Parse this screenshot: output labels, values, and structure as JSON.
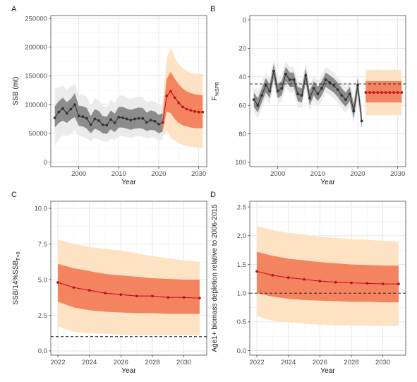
{
  "chart_data": [
    {
      "panel": "A",
      "type": "line",
      "xlabel": "Year",
      "ylabel": "SSB (mt)",
      "xlim": [
        1993,
        2032
      ],
      "ylim": [
        -8000,
        255000
      ],
      "y_reversed": false,
      "xticks": [
        2000,
        2010,
        2020,
        2030
      ],
      "yticks": [
        0,
        50000,
        100000,
        150000,
        200000,
        250000
      ],
      "ytick_labels": [
        "0",
        "50000",
        "100000",
        "150000",
        "200000",
        "250000"
      ],
      "xtick_labels": [
        "2000",
        "2010",
        "2020",
        "2030"
      ],
      "grid": true,
      "hline": null,
      "historical": {
        "color": "#333333",
        "x": [
          1994,
          1995,
          1996,
          1997,
          1998,
          1999,
          2000,
          2001,
          2002,
          2003,
          2004,
          2005,
          2006,
          2007,
          2008,
          2009,
          2010,
          2011,
          2012,
          2013,
          2014,
          2015,
          2016,
          2017,
          2018,
          2019,
          2020,
          2021
        ],
        "y": [
          77000,
          87000,
          93000,
          85000,
          92000,
          100000,
          80000,
          79000,
          76000,
          65000,
          75000,
          72000,
          65000,
          64000,
          74000,
          68000,
          78000,
          77000,
          75000,
          73000,
          75000,
          76000,
          76000,
          69000,
          73000,
          71000,
          66000,
          69000
        ],
        "band_inner": {
          "color": "#8c8c8c",
          "lower": [
            60000,
            68000,
            72000,
            68000,
            74000,
            78000,
            63000,
            62000,
            58000,
            50000,
            58000,
            55000,
            50000,
            49000,
            57000,
            52000,
            60000,
            60000,
            58000,
            56000,
            58000,
            59000,
            58000,
            54000,
            56000,
            55000,
            50000,
            53000
          ],
          "upper": [
            97000,
            106000,
            112000,
            104000,
            110000,
            120000,
            98000,
            97000,
            94000,
            80000,
            92000,
            89000,
            80000,
            79000,
            90000,
            84000,
            96000,
            96000,
            93000,
            91000,
            93000,
            95000,
            94000,
            86000,
            90000,
            88000,
            82000,
            85000
          ]
        },
        "band_outer": {
          "color": "#ebebeb",
          "lower": [
            28000,
            40000,
            47000,
            45000,
            50000,
            55000,
            45000,
            44000,
            41000,
            36000,
            42000,
            40000,
            36000,
            35000,
            41000,
            38000,
            45000,
            45000,
            44000,
            42000,
            44000,
            45000,
            44000,
            41000,
            43000,
            42000,
            37000,
            40000
          ],
          "upper": [
            128000,
            130000,
            133000,
            126000,
            132000,
            136000,
            118000,
            117000,
            114000,
            98000,
            111000,
            107000,
            97000,
            95000,
            109000,
            102000,
            116000,
            116000,
            112000,
            110000,
            112000,
            114000,
            113000,
            104000,
            107000,
            105000,
            99000,
            102000
          ]
        }
      },
      "projection": {
        "color": "#c1121f",
        "x": [
          2021,
          2022,
          2023,
          2024,
          2025,
          2026,
          2027,
          2028,
          2029,
          2030,
          2031
        ],
        "y": [
          69000,
          115000,
          123000,
          112000,
          103000,
          96000,
          92000,
          90000,
          88000,
          87000,
          87000
        ],
        "band_inner": {
          "color": "#f4845f",
          "lower": [
            55000,
            88000,
            85000,
            75000,
            68000,
            64000,
            62000,
            60000,
            59000,
            59000,
            59000
          ],
          "upper": [
            85000,
            145000,
            157000,
            145000,
            135000,
            128000,
            123000,
            120000,
            118000,
            117000,
            116000
          ]
        },
        "band_outer": {
          "color": "#fde3c3",
          "lower": [
            45000,
            55000,
            42000,
            38000,
            33000,
            30000,
            28000,
            27000,
            26000,
            25000,
            25000
          ],
          "upper": [
            99000,
            182000,
            199000,
            182000,
            170000,
            163000,
            158000,
            155000,
            154000,
            153000,
            153000
          ]
        }
      }
    },
    {
      "panel": "B",
      "type": "line",
      "xlabel": "Year",
      "ylabel": "F",
      "ylabel_sub": "%SPR",
      "xlim": [
        1993,
        2032
      ],
      "ylim": [
        -3,
        103
      ],
      "y_reversed": true,
      "xticks": [
        2000,
        2010,
        2020,
        2030
      ],
      "yticks": [
        0,
        20,
        40,
        60,
        80,
        100
      ],
      "ytick_labels": [
        "0",
        "20",
        "40",
        "60",
        "80",
        "100"
      ],
      "xtick_labels": [
        "2000",
        "2010",
        "2020",
        "2030"
      ],
      "grid": true,
      "hline": 45,
      "historical": {
        "color": "#333333",
        "x": [
          1994,
          1995,
          1996,
          1997,
          1998,
          1999,
          2000,
          2001,
          2002,
          2003,
          2004,
          2005,
          2006,
          2007,
          2008,
          2009,
          2010,
          2011,
          2012,
          2013,
          2014,
          2015,
          2016,
          2017,
          2018,
          2019,
          2020,
          2021
        ],
        "y": [
          56,
          60,
          53,
          46,
          50,
          36,
          50,
          48,
          38,
          42,
          42,
          52,
          53,
          39,
          55,
          48,
          52,
          48,
          42,
          44,
          46,
          49,
          53,
          56,
          52,
          64,
          46,
          71
        ],
        "band_inner": {
          "color": "#8c8c8c",
          "lower": [
            51,
            55,
            48,
            41,
            45,
            31,
            45,
            43,
            33,
            37,
            37,
            47,
            48,
            34,
            50,
            43,
            47,
            43,
            37,
            39,
            41,
            44,
            48,
            51,
            47,
            59,
            41,
            66
          ],
          "upper": [
            61,
            65,
            58,
            51,
            55,
            41,
            55,
            53,
            43,
            47,
            47,
            57,
            58,
            44,
            60,
            53,
            57,
            53,
            47,
            49,
            51,
            54,
            58,
            61,
            57,
            69,
            51,
            76
          ]
        },
        "band_outer": {
          "color": "#ebebeb",
          "lower": [
            47,
            51,
            44,
            37,
            41,
            27,
            41,
            39,
            29,
            33,
            33,
            43,
            44,
            30,
            46,
            39,
            43,
            39,
            33,
            35,
            37,
            40,
            44,
            47,
            43,
            55,
            37,
            62
          ],
          "upper": [
            65,
            69,
            62,
            55,
            59,
            45,
            59,
            57,
            47,
            51,
            51,
            61,
            62,
            48,
            64,
            57,
            61,
            57,
            51,
            53,
            55,
            58,
            62,
            65,
            61,
            73,
            55,
            80
          ]
        }
      },
      "projection": {
        "color": "#c1121f",
        "x": [
          2022,
          2023,
          2024,
          2025,
          2026,
          2027,
          2028,
          2029,
          2030,
          2031
        ],
        "y": [
          51,
          51,
          51,
          51,
          51,
          51,
          51,
          51,
          51,
          51
        ],
        "band_inner": {
          "color": "#f4845f",
          "lower": [
            43,
            43,
            43,
            43,
            43,
            43,
            43,
            43,
            43,
            43
          ],
          "upper": [
            58,
            58,
            58,
            58,
            58,
            58,
            58,
            58,
            58,
            58
          ]
        },
        "band_outer": {
          "color": "#fde3c3",
          "lower": [
            35,
            35,
            35,
            35,
            35,
            35,
            35,
            35,
            35,
            35
          ],
          "upper": [
            67,
            67,
            67,
            67,
            67,
            67,
            67,
            67,
            67,
            67
          ]
        }
      }
    },
    {
      "panel": "C",
      "type": "line",
      "xlabel": "Year",
      "ylabel": "SSB/14%SSB",
      "ylabel_sub": "F=0",
      "xlim": [
        2021.55,
        2031.45
      ],
      "ylim": [
        -0.3,
        10.5
      ],
      "y_reversed": false,
      "xticks": [
        2022,
        2024,
        2026,
        2028,
        2030
      ],
      "yticks": [
        0,
        2.5,
        5,
        7.5,
        10
      ],
      "ytick_labels": [
        "0.0",
        "2.5",
        "5.0",
        "7.5",
        "10.0"
      ],
      "xtick_labels": [
        "2022",
        "2024",
        "2026",
        "2028",
        "2030"
      ],
      "grid": true,
      "hline": 1,
      "projection": {
        "color": "#c1121f",
        "x": [
          2022,
          2023,
          2024,
          2025,
          2026,
          2027,
          2028,
          2029,
          2030,
          2031
        ],
        "y": [
          4.8,
          4.45,
          4.25,
          4.05,
          3.95,
          3.85,
          3.85,
          3.75,
          3.75,
          3.7
        ],
        "band_inner": {
          "color": "#f4845f",
          "lower": [
            3.45,
            3.05,
            2.85,
            2.75,
            2.7,
            2.65,
            2.65,
            2.6,
            2.6,
            2.6
          ],
          "upper": [
            6.1,
            5.8,
            5.6,
            5.4,
            5.3,
            5.2,
            5.1,
            5.05,
            5.0,
            5.0
          ]
        },
        "band_outer": {
          "color": "#fde3c3",
          "lower": [
            1.7,
            1.35,
            1.25,
            1.2,
            1.15,
            1.1,
            1.1,
            1.1,
            1.1,
            1.1
          ],
          "upper": [
            7.8,
            7.5,
            7.3,
            7.15,
            7.05,
            6.85,
            6.65,
            6.5,
            6.35,
            6.25
          ]
        }
      }
    },
    {
      "panel": "D",
      "type": "line",
      "xlabel": "Year",
      "ylabel": "Age1+ biomass depletion relative to 2006-2015",
      "xlim": [
        2021.55,
        2031.45
      ],
      "ylim": [
        -0.08,
        2.6
      ],
      "y_reversed": false,
      "xticks": [
        2022,
        2024,
        2026,
        2028,
        2030
      ],
      "yticks": [
        0,
        0.5,
        1,
        1.5,
        2,
        2.5
      ],
      "ytick_labels": [
        "0.0",
        "0.5",
        "1.0",
        "1.5",
        "2.0",
        "2.5"
      ],
      "xtick_labels": [
        "2022",
        "2024",
        "2026",
        "2028",
        "2030"
      ],
      "grid": true,
      "hline": 1,
      "projection": {
        "color": "#c1121f",
        "x": [
          2022,
          2023,
          2024,
          2025,
          2026,
          2027,
          2028,
          2029,
          2030,
          2031
        ],
        "y": [
          1.38,
          1.31,
          1.27,
          1.24,
          1.21,
          1.19,
          1.18,
          1.17,
          1.16,
          1.16
        ],
        "band_inner": {
          "color": "#f4845f",
          "lower": [
            1.0,
            0.94,
            0.9,
            0.88,
            0.87,
            0.86,
            0.85,
            0.85,
            0.84,
            0.84
          ],
          "upper": [
            1.72,
            1.65,
            1.6,
            1.57,
            1.54,
            1.52,
            1.5,
            1.49,
            1.48,
            1.48
          ]
        },
        "band_outer": {
          "color": "#fde3c3",
          "lower": [
            0.6,
            0.52,
            0.49,
            0.47,
            0.45,
            0.44,
            0.44,
            0.43,
            0.43,
            0.43
          ],
          "upper": [
            2.17,
            2.1,
            2.05,
            2.02,
            1.98,
            1.96,
            1.94,
            1.93,
            1.91,
            1.9
          ]
        }
      }
    }
  ]
}
